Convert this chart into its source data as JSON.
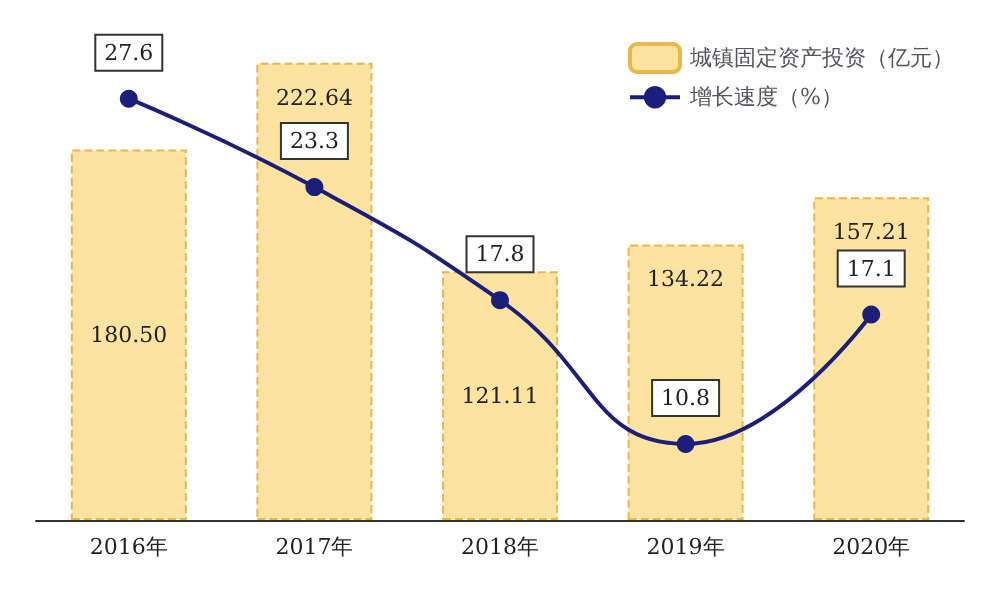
{
  "chart_data": {
    "type": "bar",
    "categories": [
      "2016年",
      "2017年",
      "2018年",
      "2019年",
      "2020年"
    ],
    "series": [
      {
        "name": "城镇固定资产投资（亿元）",
        "color": "#fde3a0",
        "values": [
          180.5,
          222.64,
          121.11,
          134.22,
          157.21
        ],
        "value_labels": [
          "180.50",
          "222.64",
          "121.11",
          "134.22",
          "157.21"
        ]
      },
      {
        "name": "增长速度（%）",
        "type": "line",
        "axis": "y2",
        "color": "#1c1f7a",
        "values": [
          27.6,
          23.3,
          17.8,
          10.8,
          17.1
        ],
        "value_labels": [
          "27.6",
          "23.3",
          "17.8",
          "10.8",
          "17.1"
        ]
      }
    ],
    "legend": "top right",
    "marker": "circle",
    "grid": false,
    "tick_labels": "x"
  }
}
